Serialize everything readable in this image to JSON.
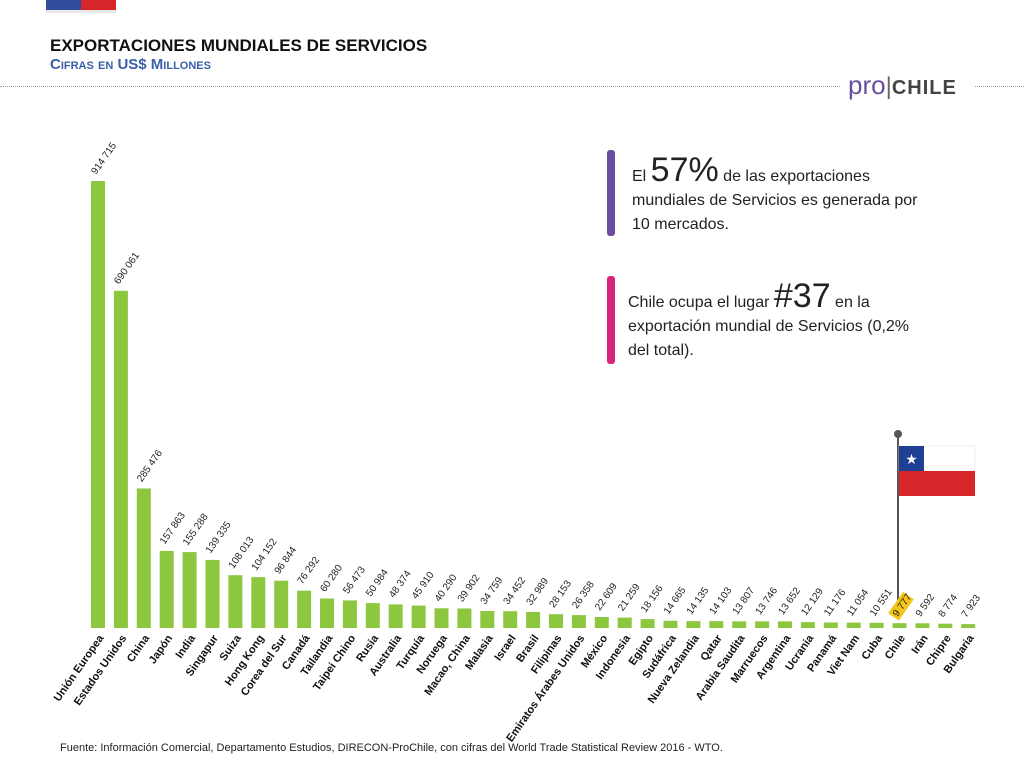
{
  "header": {
    "title": "EXPORTACIONES MUNDIALES DE SERVICIOS",
    "subtitle": "Cifras en US$ Millones"
  },
  "logo": {
    "pro": "pro",
    "sep": "|",
    "chile": "CHILE"
  },
  "callouts": [
    {
      "pre": "El ",
      "big": "57%",
      "post": " de las exportaciones mundiales de Servicios es generada por 10 mercados.",
      "color": "#6b4da0"
    },
    {
      "pre": "Chile ocupa el lugar ",
      "big": "#37",
      "post": " en la exportación mundial de Servicios (0,2% del total).",
      "color": "#d6247c"
    }
  ],
  "footer": "Fuente: Información Comercial, Departamento Estudios, DIRECON-ProChile, con cifras del World Trade Statistical Review 2016 - WTO.",
  "colors": {
    "bar": "#8dc63f",
    "highlight_label_bg": "#f5c518"
  },
  "chart_data": {
    "type": "bar",
    "title": "",
    "xlabel": "",
    "ylabel": "",
    "categories": [
      "Unión Europea",
      "Estados Unidos",
      "China",
      "Japón",
      "India",
      "Singapur",
      "Suiza",
      "Hong Kong",
      "Corea del Sur",
      "Canadá",
      "Tailandia",
      "Taipei Chino",
      "Rusia",
      "Australia",
      "Turquía",
      "Noruega",
      "Macao, China",
      "Malasia",
      "Israel",
      "Brasil",
      "Filipinas",
      "Emiratos Árabes Unidos",
      "México",
      "Indonesia",
      "Egipto",
      "Sudáfrica",
      "Nueva Zelandia",
      "Qatar",
      "Arabia Saudita",
      "Marruecos",
      "Argentina",
      "Ucrania",
      "Panamá",
      "Viet Nam",
      "Cuba",
      "Chile",
      "Irán",
      "Chipre",
      "Bulgaria"
    ],
    "values": [
      914715,
      690061,
      285476,
      157863,
      155288,
      139335,
      108013,
      104152,
      96844,
      76292,
      60280,
      56473,
      50984,
      48374,
      45910,
      40290,
      39902,
      34759,
      34452,
      32989,
      28153,
      26358,
      22609,
      21259,
      18156,
      14665,
      14135,
      14103,
      13807,
      13746,
      13652,
      12129,
      11176,
      11054,
      10551,
      9777,
      9592,
      8774,
      7923
    ],
    "value_labels": [
      "914 715",
      "690 061",
      "285 476",
      "157 863",
      "155 288",
      "139 335",
      "108 013",
      "104 152",
      "96 844",
      "76 292",
      "60 280",
      "56 473",
      "50 984",
      "48 374",
      "45 910",
      "40 290",
      "39 902",
      "34 759",
      "34 452",
      "32 989",
      "28 153",
      "26 358",
      "22 609",
      "21 259",
      "18 156",
      "14 665",
      "14 135",
      "14 103",
      "13 807",
      "13 746",
      "13 652",
      "12 129",
      "11 176",
      "11 054",
      "10 551",
      "9 777",
      "9 592",
      "8 774",
      "7 923"
    ],
    "highlight": "Chile",
    "ylim": [
      0,
      914715
    ],
    "grid": false
  }
}
